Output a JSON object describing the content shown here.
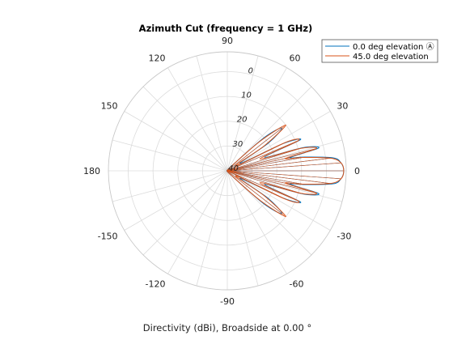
{
  "chart_data": {
    "type": "polar-line",
    "title": "Azimuth Cut (frequency = 1 GHz)",
    "xlabel": "Directivity (dBi), Broadside at 0.00 °",
    "angle_ticks_deg": [
      0,
      30,
      60,
      90,
      120,
      150,
      180,
      -150,
      -120,
      -90,
      -60,
      -30
    ],
    "angle_tick_labels": [
      "0",
      "30",
      "60",
      "90",
      "120",
      "150",
      "180",
      "-150",
      "-120",
      "-90",
      "-60",
      "-30"
    ],
    "radial_ticks_db": [
      0,
      -10,
      -20,
      -30,
      -40
    ],
    "radial_tick_labels": [
      "0",
      "10",
      "20",
      "30",
      "40"
    ],
    "rlim_db": [
      -40,
      8
    ],
    "grid": true,
    "legend_location": "top-right",
    "colors": {
      "series1": "#0072BD",
      "series2": "#D95319",
      "grid": "#dcdcdc",
      "axis_text": "#222222"
    },
    "series": [
      {
        "name": "0.0 deg elevation Ⓐ",
        "color": "#0072BD",
        "angles_deg": [
          -90,
          -60,
          -50,
          -42,
          -38,
          -34,
          -30,
          -26,
          -23,
          -20,
          -17,
          -14,
          -12,
          -10,
          -7,
          -4,
          0,
          4,
          7,
          10,
          12,
          14,
          17,
          20,
          23,
          26,
          30,
          34,
          38,
          42,
          50,
          60,
          90
        ],
        "values_db": [
          -40,
          -40,
          -38,
          -20,
          -12,
          -20,
          -34,
          -15,
          -8,
          -24,
          -8,
          -2,
          -14,
          -8,
          3,
          6,
          7,
          6,
          3,
          -8,
          -14,
          -2,
          -8,
          -24,
          -8,
          -15,
          -34,
          -20,
          -12,
          -20,
          -38,
          -40,
          -40
        ]
      },
      {
        "name": "45.0 deg elevation",
        "color": "#D95319",
        "angles_deg": [
          -90,
          -60,
          -50,
          -42,
          -38,
          -34,
          -30,
          -26,
          -23,
          -20,
          -17,
          -14,
          -12,
          -10,
          -7,
          -4,
          0,
          4,
          7,
          10,
          12,
          14,
          17,
          20,
          23,
          26,
          30,
          34,
          38,
          42,
          50,
          60,
          90
        ],
        "values_db": [
          -40,
          -40,
          -38,
          -22,
          -10,
          -22,
          -36,
          -14,
          -9,
          -26,
          -9,
          -3,
          -16,
          -9,
          2,
          6,
          7,
          6,
          2,
          -9,
          -16,
          -3,
          -9,
          -26,
          -9,
          -14,
          -36,
          -22,
          -10,
          -22,
          -38,
          -40,
          -40
        ]
      }
    ]
  }
}
